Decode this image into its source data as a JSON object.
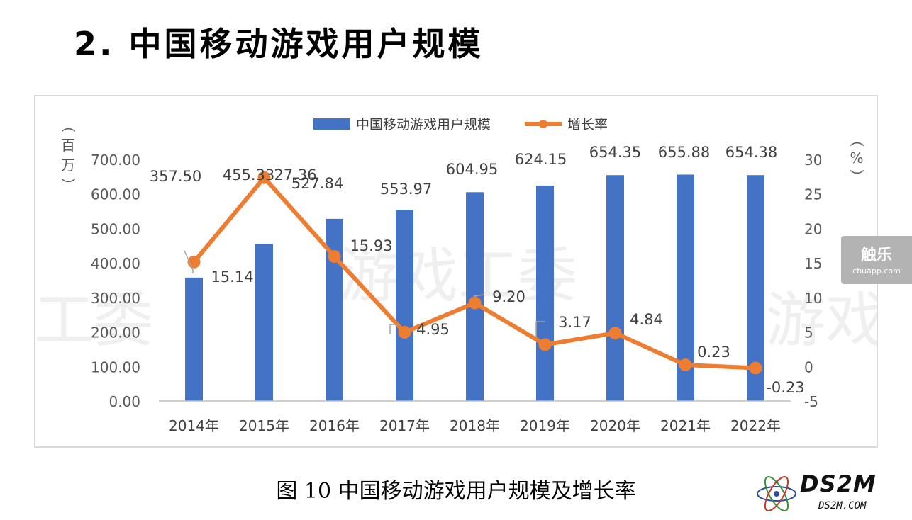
{
  "page": {
    "heading": "2.  中国移动游戏用户规模",
    "caption": "图 10 中国移动游戏用户规模及增长率",
    "badge_main": "触乐",
    "badge_sub": "chuapp.com",
    "logo_main": "DS2M",
    "logo_sub": "DS2M.COM"
  },
  "chart_data": {
    "type": "bar",
    "categories": [
      "2014年",
      "2015年",
      "2016年",
      "2017年",
      "2018年",
      "2019年",
      "2020年",
      "2021年",
      "2022年"
    ],
    "series": [
      {
        "name": "中国移动游戏用户规模",
        "type": "bar",
        "axis": "left",
        "values": [
          357.5,
          455.33,
          527.84,
          553.97,
          604.95,
          624.15,
          654.35,
          655.88,
          654.38
        ],
        "labels": [
          "357.50",
          "455.33",
          "527.84",
          "553.97",
          "604.95",
          "624.15",
          "654.35",
          "655.88",
          "654.38"
        ],
        "color": "#4472c4"
      },
      {
        "name": "增长率",
        "type": "line",
        "axis": "right",
        "values": [
          15.14,
          27.36,
          15.93,
          4.95,
          9.2,
          3.17,
          4.84,
          0.23,
          -0.23
        ],
        "labels": [
          "15.14",
          "27.36",
          "15.93",
          "4.95",
          "9.20",
          "3.17",
          "4.84",
          "0.23",
          "-0.23"
        ],
        "color": "#ed7d31"
      }
    ],
    "y_left": {
      "label": "（百万）",
      "range": [
        0,
        700
      ],
      "ticks": [
        "0.00",
        "100.00",
        "200.00",
        "300.00",
        "400.00",
        "500.00",
        "600.00",
        "700.00"
      ]
    },
    "y_right": {
      "label": "（%）",
      "range": [
        -5,
        30
      ],
      "ticks": [
        "-5",
        "0",
        "5",
        "10",
        "15",
        "20",
        "25",
        "30"
      ]
    },
    "legend_position": "top-center",
    "grid": false,
    "watermark": "游戏工委"
  }
}
